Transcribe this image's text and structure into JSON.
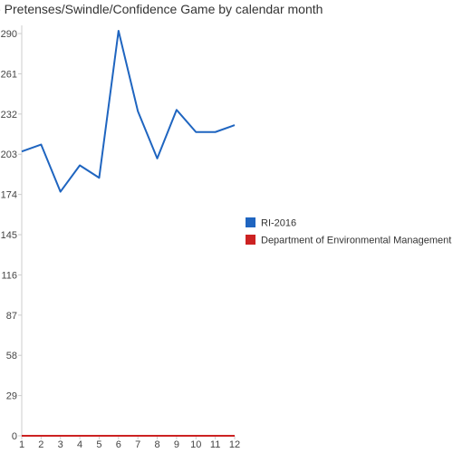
{
  "chart_data": {
    "type": "line",
    "title": "se Pretenses/Swindle/Confidence Game by calendar month",
    "x": [
      1,
      2,
      3,
      4,
      5,
      6,
      7,
      8,
      9,
      10,
      11,
      12
    ],
    "y_ticks": [
      0,
      29,
      58,
      87,
      116,
      145,
      174,
      203,
      232,
      261,
      290
    ],
    "ylim": [
      0,
      290
    ],
    "grid": false,
    "legend_position": "right",
    "series": [
      {
        "name": "RI-2016",
        "color": "#1f65c0",
        "values": [
          205,
          210,
          176,
          195,
          186,
          292,
          234,
          200,
          235,
          219,
          219,
          224
        ]
      },
      {
        "name": "Department of Environmental Management",
        "color": "#cc2222",
        "values": [
          0,
          0,
          0,
          0,
          0,
          0,
          0,
          0,
          0,
          0,
          0,
          0
        ]
      }
    ]
  }
}
